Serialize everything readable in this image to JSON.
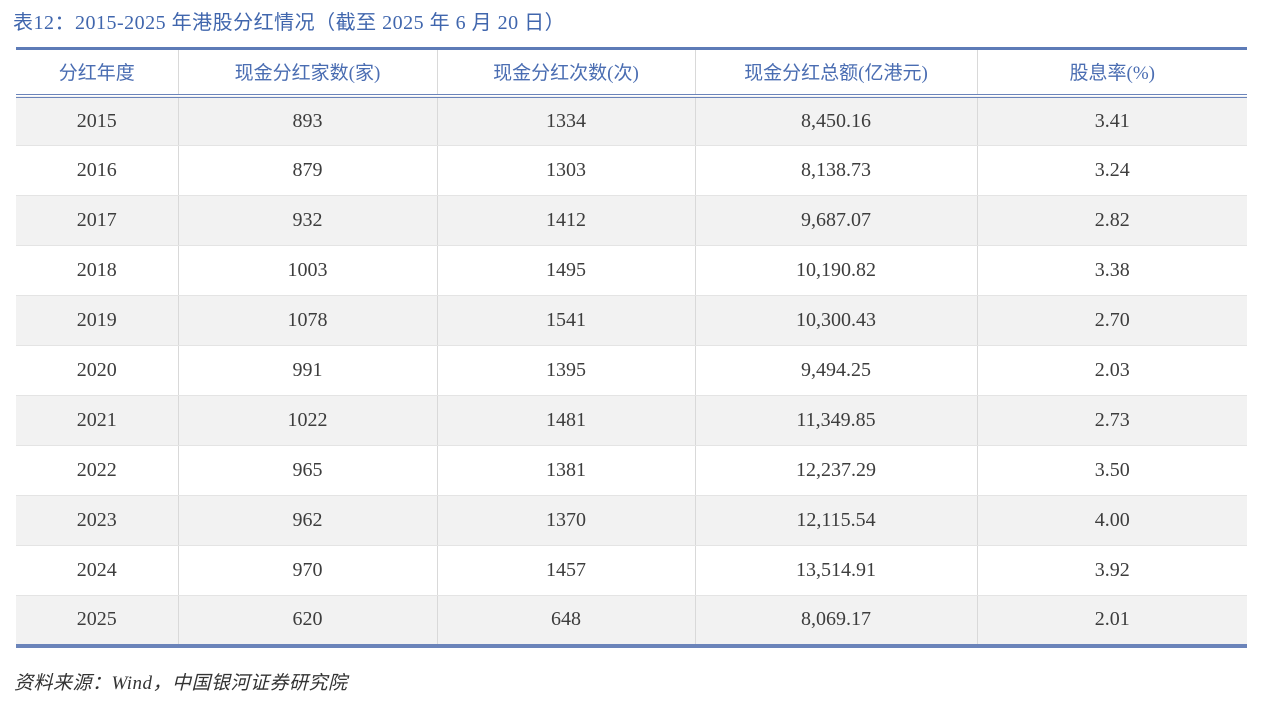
{
  "page": {
    "title": "表12：2015-2025 年港股分红情况（截至 2025 年 6 月 20 日）",
    "source_note": "资料来源：Wind，中国银河证券研究院"
  },
  "colors": {
    "title_blue": "#4066ad",
    "header_text_blue": "#4a6db2",
    "rule_blue": "#5d7bb7",
    "stripe_gray": "#f2f2f2",
    "grid_gray": "#d9d9d9",
    "body_text": "#3d3d3d"
  },
  "table": {
    "columns": [
      "分红年度",
      "现金分红家数(家)",
      "现金分红次数(次)",
      "现金分红总额(亿港元)",
      "股息率(%)"
    ],
    "rows": [
      [
        "2015",
        "893",
        "1334",
        "8,450.16",
        "3.41"
      ],
      [
        "2016",
        "879",
        "1303",
        "8,138.73",
        "3.24"
      ],
      [
        "2017",
        "932",
        "1412",
        "9,687.07",
        "2.82"
      ],
      [
        "2018",
        "1003",
        "1495",
        "10,190.82",
        "3.38"
      ],
      [
        "2019",
        "1078",
        "1541",
        "10,300.43",
        "2.70"
      ],
      [
        "2020",
        "991",
        "1395",
        "9,494.25",
        "2.03"
      ],
      [
        "2021",
        "1022",
        "1481",
        "11,349.85",
        "2.73"
      ],
      [
        "2022",
        "965",
        "1381",
        "12,237.29",
        "3.50"
      ],
      [
        "2023",
        "962",
        "1370",
        "12,115.54",
        "4.00"
      ],
      [
        "2024",
        "970",
        "1457",
        "13,514.91",
        "3.92"
      ],
      [
        "2025",
        "620",
        "648",
        "8,069.17",
        "2.01"
      ]
    ]
  },
  "chart_data": {
    "type": "table",
    "title": "表12：2015-2025 年港股分红情况（截至 2025 年 6 月 20 日）",
    "columns": [
      "分红年度",
      "现金分红家数(家)",
      "现金分红次数(次)",
      "现金分红总额(亿港元)",
      "股息率(%)"
    ],
    "rows": [
      [
        "2015",
        893,
        1334,
        8450.16,
        3.41
      ],
      [
        "2016",
        879,
        1303,
        8138.73,
        3.24
      ],
      [
        "2017",
        932,
        1412,
        9687.07,
        2.82
      ],
      [
        "2018",
        1003,
        1495,
        10190.82,
        3.38
      ],
      [
        "2019",
        1078,
        1541,
        10300.43,
        2.7
      ],
      [
        "2020",
        991,
        1395,
        9494.25,
        2.03
      ],
      [
        "2021",
        1022,
        1481,
        11349.85,
        2.73
      ],
      [
        "2022",
        965,
        1381,
        12237.29,
        3.5
      ],
      [
        "2023",
        962,
        1370,
        12115.54,
        4.0
      ],
      [
        "2024",
        970,
        1457,
        13514.91,
        3.92
      ],
      [
        "2025",
        620,
        648,
        8069.17,
        2.01
      ]
    ]
  }
}
